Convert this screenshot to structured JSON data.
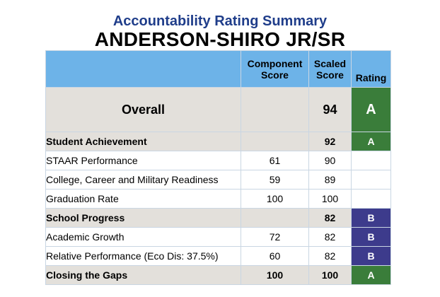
{
  "header": {
    "subtitle": "Accountability Rating Summary",
    "title": "ANDERSON-SHIRO JR/SR"
  },
  "table": {
    "columns": {
      "label": "",
      "component_line1": "Component",
      "component_line2": "Score",
      "scaled_line1": "Scaled",
      "scaled_line2": "Score",
      "rating": "Rating"
    },
    "rows": [
      {
        "label": "Overall",
        "component": "",
        "scaled": "94",
        "rating": "A",
        "type": "overall"
      },
      {
        "label": "Student Achievement",
        "component": "",
        "scaled": "92",
        "rating": "A",
        "type": "category"
      },
      {
        "label": "STAAR Performance",
        "component": "61",
        "scaled": "90",
        "rating": "",
        "type": "sub"
      },
      {
        "label": "College, Career and Military Readiness",
        "component": "59",
        "scaled": "89",
        "rating": "",
        "type": "sub"
      },
      {
        "label": "Graduation Rate",
        "component": "100",
        "scaled": "100",
        "rating": "",
        "type": "sub"
      },
      {
        "label": "School Progress",
        "component": "",
        "scaled": "82",
        "rating": "B",
        "type": "category"
      },
      {
        "label": "Academic Growth",
        "component": "72",
        "scaled": "82",
        "rating": "B",
        "type": "sub"
      },
      {
        "label": "Relative Performance (Eco Dis: 37.5%)",
        "component": "60",
        "scaled": "82",
        "rating": "B",
        "type": "sub"
      },
      {
        "label": "Closing the Gaps",
        "component": "100",
        "scaled": "100",
        "rating": "A",
        "type": "category"
      }
    ]
  },
  "colors": {
    "header_bg": "#6db3e8",
    "category_bg": "#e3e0db",
    "rating_a": "#3a7d3a",
    "rating_b": "#3d3b8c",
    "subtitle": "#1f3d8a"
  }
}
